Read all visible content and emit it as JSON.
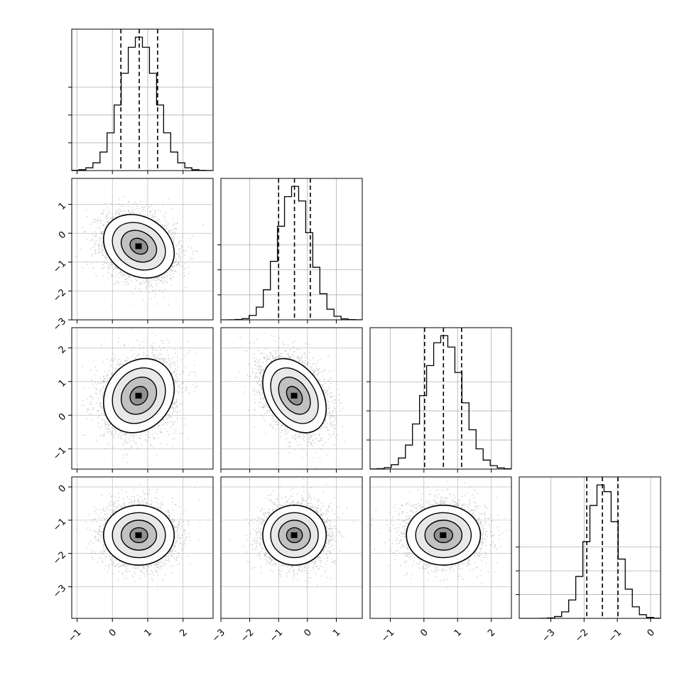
{
  "chart_data": {
    "type": "corner",
    "variables": [
      {
        "range": [
          -1.15,
          2.85
        ],
        "ticks": [
          -1,
          0,
          1,
          2
        ],
        "tick_labels": [
          "−1",
          "0",
          "1",
          "2"
        ],
        "mean": 0.75,
        "sigma": 0.5,
        "quantiles": [
          0.24,
          0.76,
          1.28
        ]
      },
      {
        "range": [
          -3.0,
          1.9
        ],
        "ticks": [
          -3,
          -2,
          -1,
          0,
          1
        ],
        "tick_labels": [
          "−3",
          "−2",
          "−1",
          "0",
          "1"
        ],
        "mean": -0.45,
        "sigma": 0.55,
        "quantiles": [
          -1.0,
          -0.45,
          0.1
        ]
      },
      {
        "range": [
          -1.6,
          2.6
        ],
        "ticks": [
          -1,
          0,
          1,
          2
        ],
        "tick_labels": [
          "−1",
          "0",
          "1",
          "2"
        ],
        "mean": 0.58,
        "sigma": 0.55,
        "quantiles": [
          0.02,
          0.58,
          1.12
        ]
      },
      {
        "range": [
          -3.95,
          0.3
        ],
        "ticks": [
          -3,
          -2,
          -1,
          0
        ],
        "tick_labels": [
          "−3",
          "−2",
          "−1",
          "0"
        ],
        "mean": -1.45,
        "sigma": 0.45,
        "quantiles": [
          -1.92,
          -1.45,
          -0.98
        ]
      }
    ],
    "correlations": [
      [
        1.0,
        -0.22,
        0.18,
        0.0
      ],
      [
        -0.22,
        1.0,
        -0.35,
        0.0
      ],
      [
        0.18,
        -0.35,
        1.0,
        0.0
      ],
      [
        0.0,
        0.0,
        0.0,
        1.0
      ]
    ],
    "contour_levels_sigma": [
      0.5,
      1.0,
      1.5,
      2.0
    ],
    "grid": true,
    "quantile_line_style": "dashed",
    "colors": {
      "line": "#000000",
      "points": "#808080",
      "grid": "#b0b0b0",
      "fill": "#ffffff"
    }
  }
}
